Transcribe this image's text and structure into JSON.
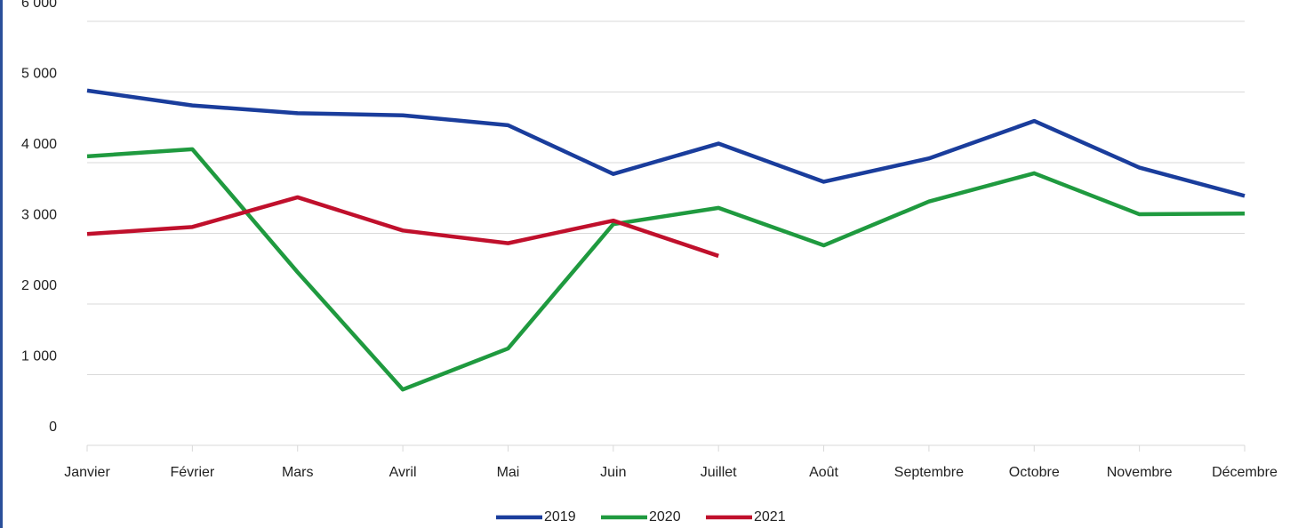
{
  "chart_data": {
    "type": "line",
    "categories": [
      "Janvier",
      "Février",
      "Mars",
      "Avril",
      "Mai",
      "Juin",
      "Juillet",
      "Août",
      "Septembre",
      "Octobre",
      "Novembre",
      "Décembre"
    ],
    "series": [
      {
        "name": "2019",
        "color": "#1a3d9c",
        "values": [
          5020,
          4810,
          4700,
          4670,
          4530,
          3840,
          4270,
          3730,
          4060,
          4590,
          3930,
          3530
        ]
      },
      {
        "name": "2020",
        "color": "#1f9a3f",
        "values": [
          4090,
          4190,
          2450,
          790,
          1370,
          3130,
          3360,
          2830,
          3450,
          3850,
          3270,
          3280
        ]
      },
      {
        "name": "2021",
        "color": "#c0102c",
        "values": [
          2990,
          3090,
          3510,
          3040,
          2860,
          3180,
          2680,
          null,
          null,
          null,
          null,
          null
        ]
      }
    ],
    "ylim": [
      0,
      6000
    ],
    "yticks": [
      0,
      {
        "value": 1000,
        "label": "1 000"
      },
      {
        "value": 2000,
        "label": "2 000"
      },
      {
        "value": 3000,
        "label": "3 000"
      },
      {
        "value": 4000,
        "label": "4 000"
      },
      {
        "value": 5000,
        "label": "5 000"
      },
      {
        "value": 6000,
        "label": "6 000"
      }
    ],
    "grid": true,
    "legend": "bottom"
  }
}
